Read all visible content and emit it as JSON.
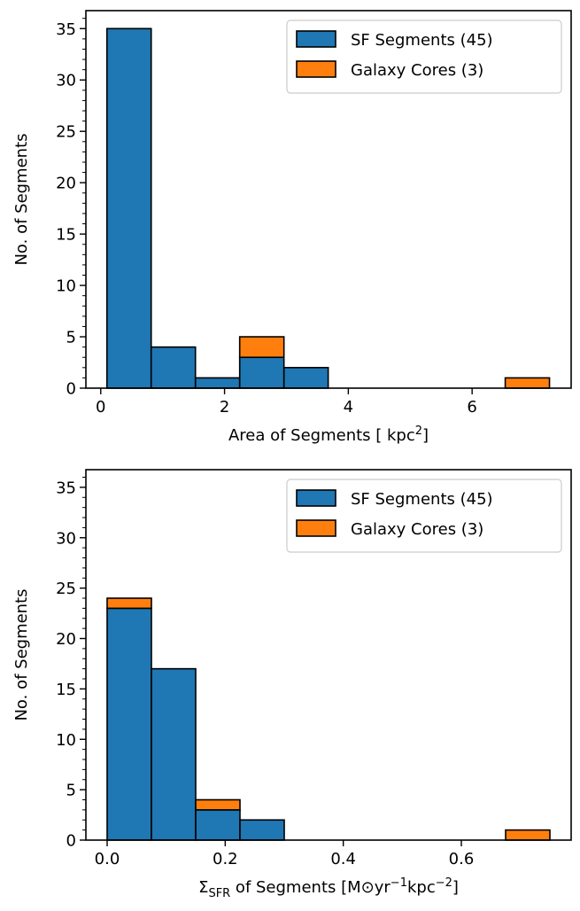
{
  "colors": {
    "sf": "#1f77b4",
    "core": "#ff7f0e",
    "edge": "#000000"
  },
  "chart_data": [
    {
      "type": "bar",
      "histogram": true,
      "stacked": true,
      "xlabel": "Area of Segments [ kpc²]",
      "ylabel": "No. of Segments",
      "xlim": [
        -0.24,
        7.6
      ],
      "ylim": [
        0,
        36.75
      ],
      "xticks": [
        0,
        2,
        4,
        6
      ],
      "xtick_labels": [
        "0",
        "2",
        "4",
        "6"
      ],
      "yticks": [
        0,
        5,
        10,
        15,
        20,
        25,
        30,
        35
      ],
      "ytick_labels": [
        "0",
        "5",
        "10",
        "15",
        "20",
        "25",
        "30",
        "35"
      ],
      "bin_edges": [
        0.1,
        0.815,
        1.53,
        2.245,
        2.96,
        3.675,
        4.39,
        5.105,
        5.82,
        6.535,
        7.25
      ],
      "legend_position": "top-right",
      "series": [
        {
          "name": "SF Segments (45)",
          "color_key": "sf",
          "values": [
            35,
            4,
            1,
            3,
            2,
            0,
            0,
            0,
            0,
            0
          ]
        },
        {
          "name": "Galaxy Cores (3)",
          "color_key": "core",
          "values": [
            0,
            0,
            0,
            2,
            0,
            0,
            0,
            0,
            0,
            1
          ]
        }
      ]
    },
    {
      "type": "bar",
      "histogram": true,
      "stacked": true,
      "xlabel": "ΣSFR of Segments [M⊙yr⁻¹kpc⁻²]",
      "ylabel": "No. of Segments",
      "xlim": [
        -0.036,
        0.786
      ],
      "ylim": [
        0,
        36.75
      ],
      "xticks": [
        0.0,
        0.2,
        0.4,
        0.6
      ],
      "xtick_labels": [
        "0.0",
        "0.2",
        "0.4",
        "0.6"
      ],
      "yticks": [
        0,
        5,
        10,
        15,
        20,
        25,
        30,
        35
      ],
      "ytick_labels": [
        "0",
        "5",
        "10",
        "15",
        "20",
        "25",
        "30",
        "35"
      ],
      "bin_edges": [
        0.0,
        0.075,
        0.15,
        0.225,
        0.3,
        0.375,
        0.45,
        0.525,
        0.6,
        0.675,
        0.75
      ],
      "legend_position": "top-right",
      "series": [
        {
          "name": "SF Segments (45)",
          "color_key": "sf",
          "values": [
            23,
            17,
            3,
            2,
            0,
            0,
            0,
            0,
            0,
            0
          ]
        },
        {
          "name": "Galaxy Cores (3)",
          "color_key": "core",
          "values": [
            1,
            0,
            1,
            0,
            0,
            0,
            0,
            0,
            0,
            1
          ]
        }
      ]
    }
  ]
}
